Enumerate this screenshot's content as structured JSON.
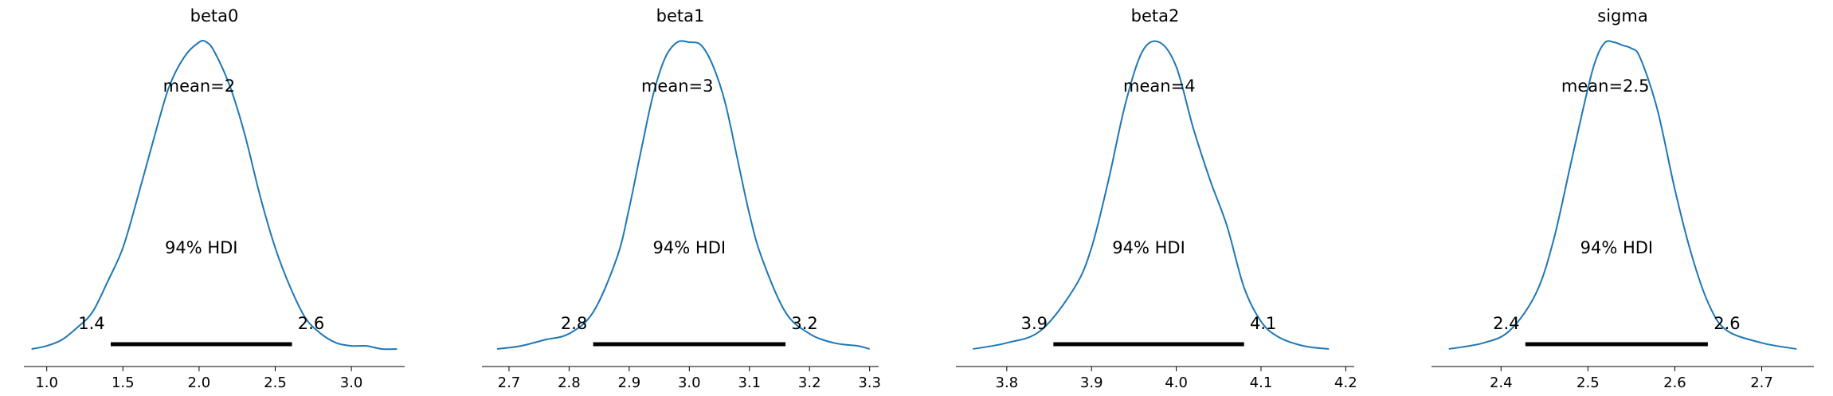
{
  "chart_data": [
    {
      "type": "line",
      "title": "beta0",
      "mean_label": "mean=2",
      "hdi_label": "94% HDI",
      "hdi": [
        1.42,
        2.61
      ],
      "hdi_labels": [
        "1.4",
        "2.6"
      ],
      "xlim": [
        0.85,
        3.35
      ],
      "ylim": [
        0,
        1
      ],
      "xticks": [
        1.0,
        1.5,
        2.0,
        2.5,
        3.0
      ],
      "xtick_labels": [
        "1.0",
        "1.5",
        "2.0",
        "2.5",
        "3.0"
      ],
      "density": {
        "x": [
          0.9,
          1.0,
          1.1,
          1.2,
          1.3,
          1.4,
          1.5,
          1.6,
          1.7,
          1.8,
          1.9,
          2.0,
          2.05,
          2.1,
          2.2,
          2.3,
          2.4,
          2.5,
          2.6,
          2.7,
          2.8,
          2.9,
          3.0,
          3.1,
          3.2,
          3.3
        ],
        "y": [
          0.0,
          0.01,
          0.03,
          0.07,
          0.12,
          0.22,
          0.33,
          0.5,
          0.68,
          0.85,
          0.95,
          1.0,
          1.0,
          0.97,
          0.86,
          0.7,
          0.5,
          0.33,
          0.2,
          0.1,
          0.05,
          0.02,
          0.01,
          0.01,
          0.0,
          0.0
        ]
      }
    },
    {
      "type": "line",
      "title": "beta1",
      "mean_label": "mean=3",
      "hdi_label": "94% HDI",
      "hdi": [
        2.84,
        3.16
      ],
      "hdi_labels": [
        "2.8",
        "3.2"
      ],
      "xlim": [
        2.655,
        3.315
      ],
      "ylim": [
        0,
        1
      ],
      "xticks": [
        2.7,
        2.8,
        2.9,
        3.0,
        3.1,
        3.2,
        3.3
      ],
      "xtick_labels": [
        "2.7",
        "2.8",
        "2.9",
        "3.0",
        "3.1",
        "3.2",
        "3.3"
      ],
      "density": {
        "x": [
          2.68,
          2.72,
          2.76,
          2.8,
          2.84,
          2.88,
          2.9,
          2.92,
          2.94,
          2.96,
          2.98,
          3.0,
          3.02,
          3.04,
          3.06,
          3.08,
          3.1,
          3.12,
          3.16,
          3.2,
          3.24,
          3.28,
          3.3
        ],
        "y": [
          0.0,
          0.01,
          0.03,
          0.05,
          0.12,
          0.3,
          0.46,
          0.65,
          0.83,
          0.95,
          1.0,
          1.0,
          0.99,
          0.92,
          0.8,
          0.62,
          0.44,
          0.3,
          0.12,
          0.05,
          0.02,
          0.01,
          0.0
        ]
      }
    },
    {
      "type": "line",
      "title": "beta2",
      "mean_label": "mean=4",
      "hdi_label": "94% HDI",
      "hdi": [
        3.855,
        4.08
      ],
      "hdi_labels": [
        "3.9",
        "4.1"
      ],
      "xlim": [
        3.74,
        4.21
      ],
      "ylim": [
        0,
        1
      ],
      "xticks": [
        3.8,
        3.9,
        4.0,
        4.1,
        4.2
      ],
      "xtick_labels": [
        "3.8",
        "3.9",
        "4.0",
        "4.1",
        "4.2"
      ],
      "density": {
        "x": [
          3.76,
          3.8,
          3.84,
          3.88,
          3.9,
          3.92,
          3.94,
          3.96,
          3.98,
          4.0,
          4.02,
          4.04,
          4.06,
          4.08,
          4.1,
          4.12,
          4.15,
          4.18
        ],
        "y": [
          0.0,
          0.02,
          0.06,
          0.2,
          0.33,
          0.55,
          0.8,
          0.97,
          1.0,
          0.92,
          0.72,
          0.55,
          0.4,
          0.2,
          0.09,
          0.04,
          0.01,
          0.0
        ]
      }
    },
    {
      "type": "line",
      "title": "sigma",
      "mean_label": "mean=2.5",
      "hdi_label": "94% HDI",
      "hdi": [
        2.428,
        2.638
      ],
      "hdi_labels": [
        "2.4",
        "2.6"
      ],
      "xlim": [
        2.32,
        2.76
      ],
      "ylim": [
        0,
        1
      ],
      "xticks": [
        2.4,
        2.5,
        2.6,
        2.7
      ],
      "xtick_labels": [
        "2.4",
        "2.5",
        "2.6",
        "2.7"
      ],
      "density": {
        "x": [
          2.34,
          2.38,
          2.41,
          2.44,
          2.46,
          2.48,
          2.5,
          2.51,
          2.52,
          2.53,
          2.54,
          2.55,
          2.56,
          2.58,
          2.6,
          2.62,
          2.64,
          2.66,
          2.7,
          2.74
        ],
        "y": [
          0.0,
          0.02,
          0.06,
          0.18,
          0.35,
          0.6,
          0.85,
          0.95,
          1.0,
          1.0,
          0.99,
          0.98,
          0.95,
          0.78,
          0.52,
          0.3,
          0.14,
          0.06,
          0.02,
          0.0
        ]
      }
    }
  ]
}
